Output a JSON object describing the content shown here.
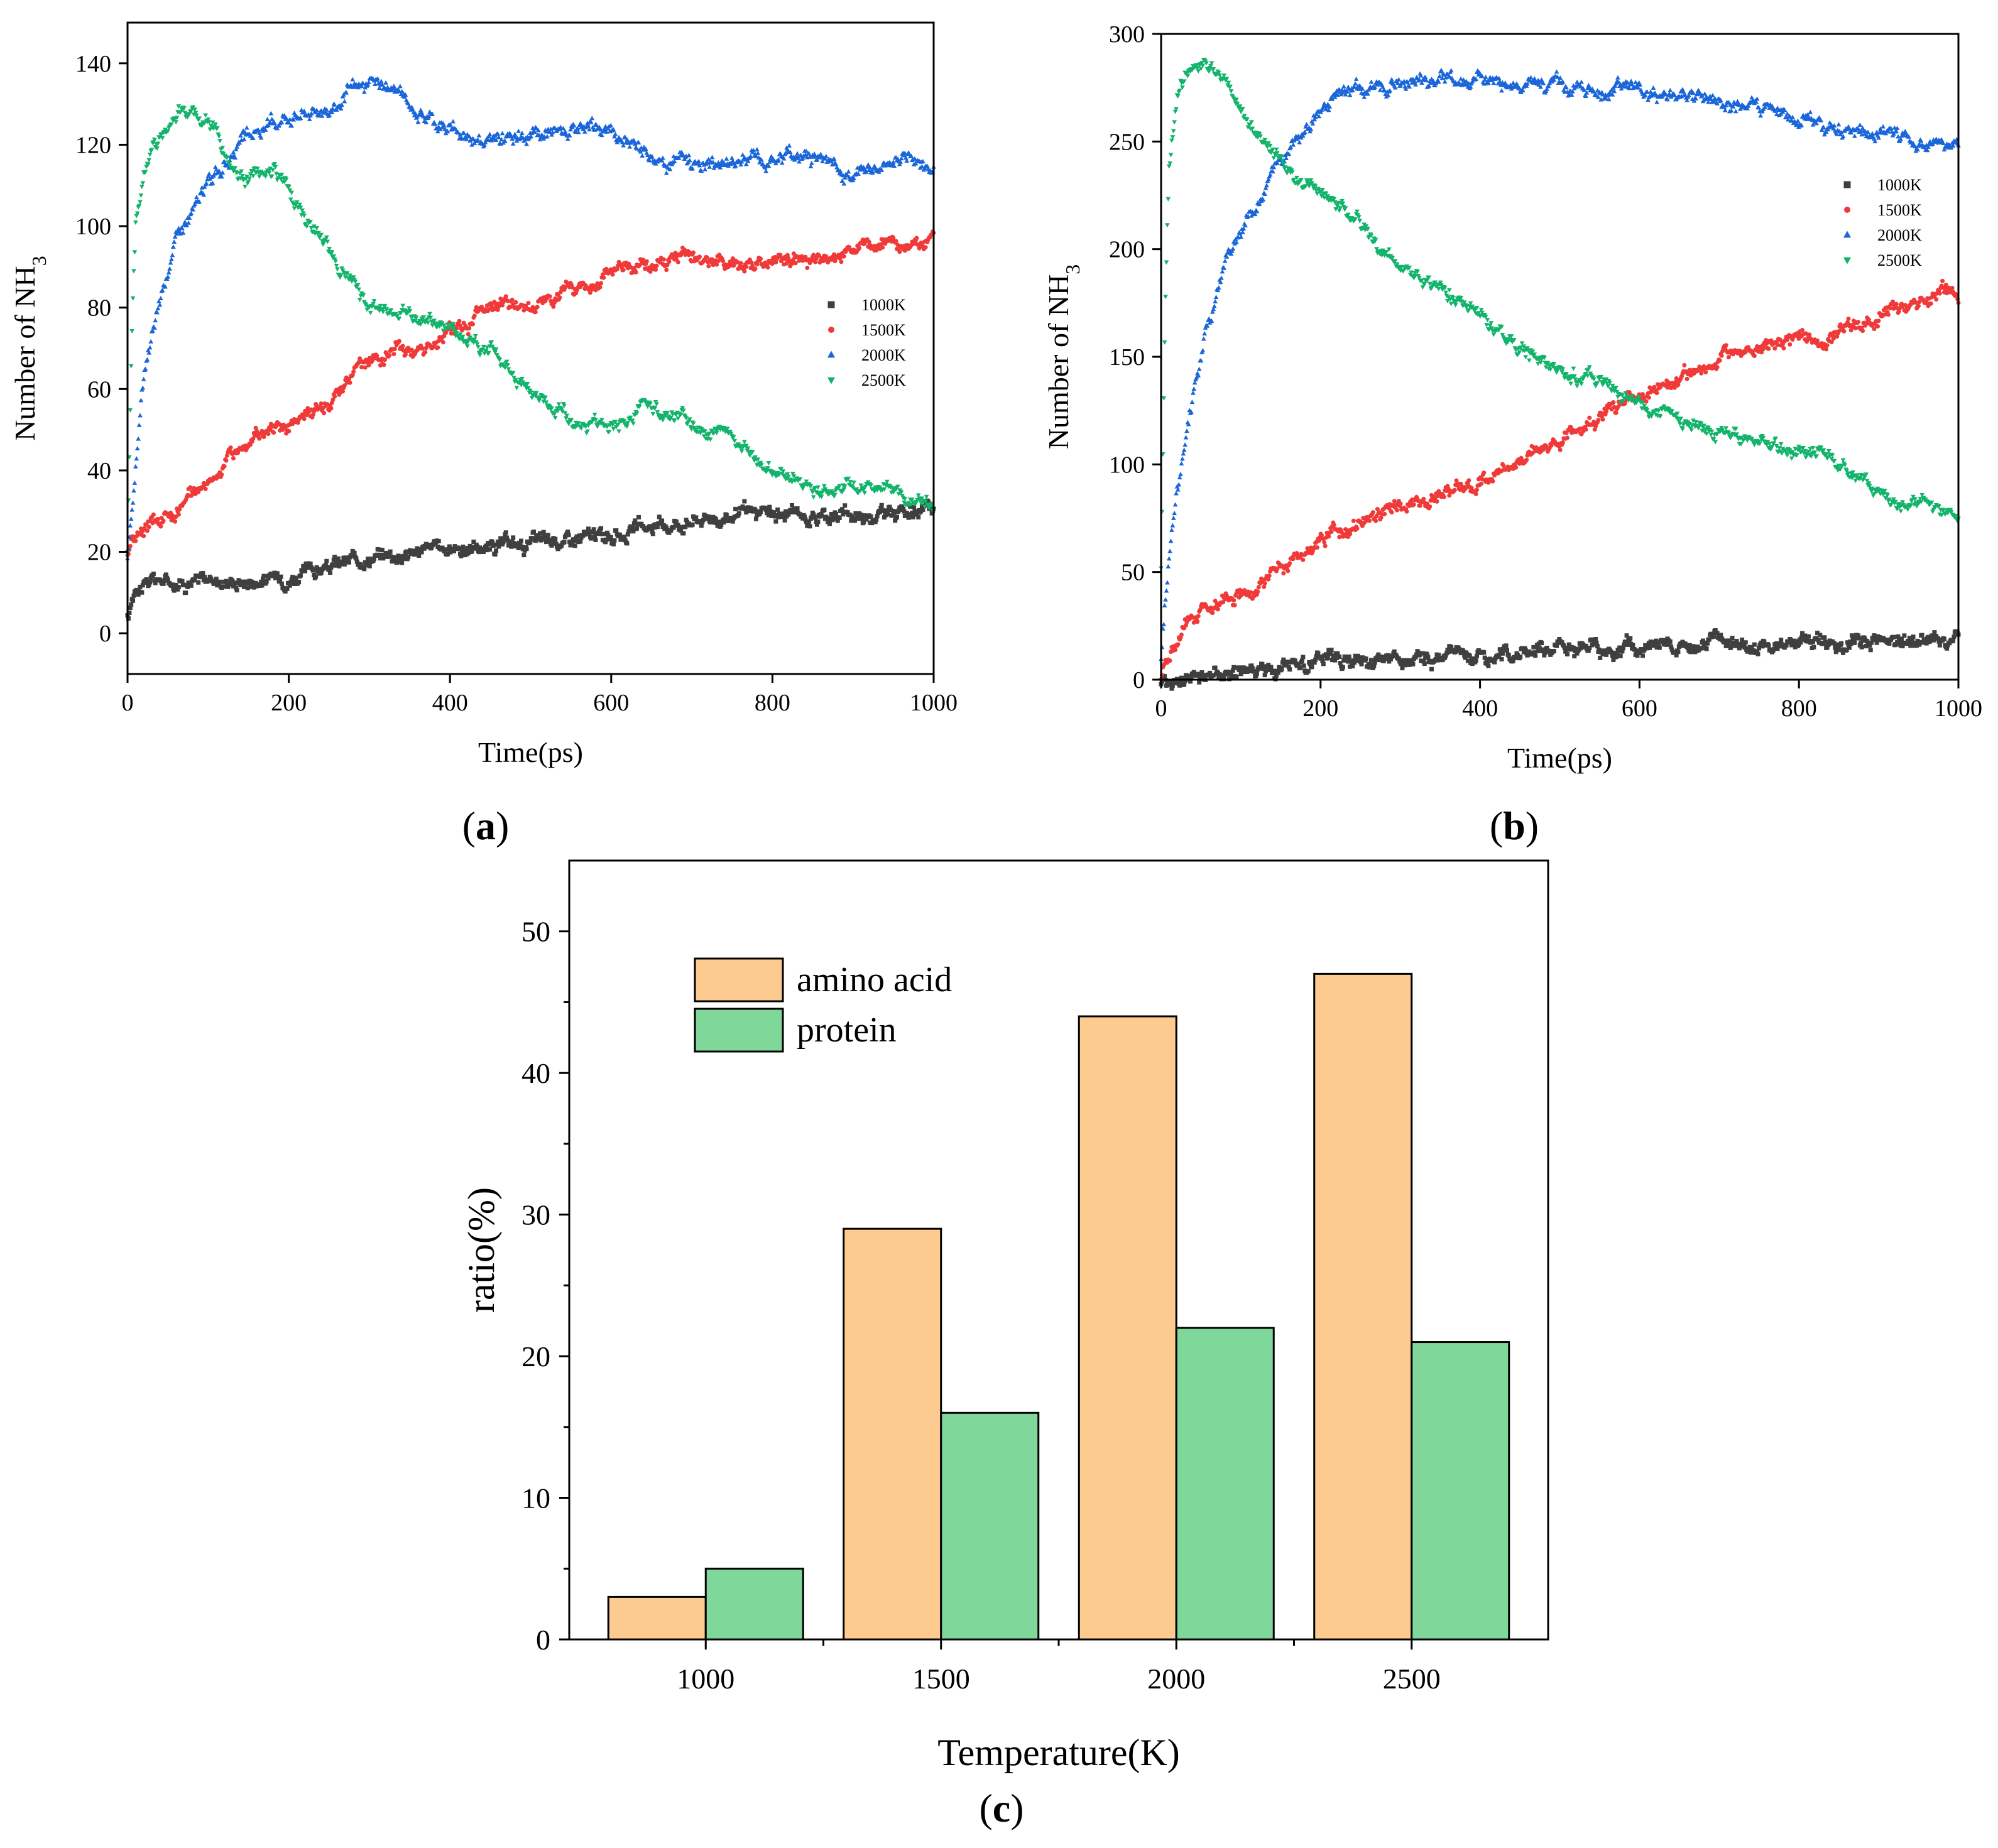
{
  "chart_data": [
    {
      "type": "scatter",
      "panel_label": "a",
      "xlabel": "Time(ps)",
      "ylabel": "Number of NH",
      "ylabel_sub": "3",
      "xlim": [
        0,
        1000
      ],
      "ylim": [
        -10,
        150
      ],
      "xticks": [
        "0",
        "200",
        "400",
        "600",
        "800",
        "1000"
      ],
      "yticks": [
        "0",
        "20",
        "40",
        "60",
        "80",
        "100",
        "120",
        "140"
      ],
      "legend_position": "right",
      "series": [
        {
          "name": "1000K",
          "color": "#3f3f3f",
          "marker": "square",
          "x": [
            0,
            10,
            30,
            60,
            100,
            150,
            200,
            250,
            300,
            350,
            400,
            450,
            500,
            550,
            600,
            650,
            700,
            750,
            800,
            850,
            900,
            950,
            1000
          ],
          "y": [
            3,
            12,
            13,
            13,
            13,
            13,
            14,
            16,
            19,
            20,
            21,
            21,
            22,
            23,
            24,
            26,
            28,
            29,
            29,
            29,
            29,
            30,
            30
          ]
        },
        {
          "name": "1500K",
          "color": "#f03a3a",
          "marker": "circle",
          "x": [
            0,
            10,
            30,
            60,
            100,
            150,
            180,
            200,
            250,
            300,
            350,
            400,
            450,
            500,
            550,
            600,
            650,
            700,
            750,
            800,
            850,
            900,
            950,
            1000
          ],
          "y": [
            20,
            24,
            27,
            30,
            38,
            47,
            51,
            50,
            58,
            67,
            70,
            74,
            79,
            81,
            83,
            88,
            90,
            92,
            91,
            90,
            92,
            93,
            96,
            96
          ]
        },
        {
          "name": "2000K",
          "color": "#1a66d9",
          "marker": "triangle-up",
          "x": [
            0,
            10,
            20,
            40,
            60,
            80,
            100,
            150,
            200,
            250,
            300,
            330,
            350,
            400,
            450,
            500,
            550,
            600,
            650,
            700,
            750,
            800,
            850,
            900,
            950,
            1000
          ],
          "y": [
            18,
            40,
            62,
            82,
            97,
            103,
            111,
            121,
            128,
            129,
            135,
            134,
            130,
            124,
            121,
            122,
            123,
            124,
            117,
            116,
            116,
            117,
            117,
            113,
            116,
            115
          ]
        },
        {
          "name": "2500K",
          "color": "#12b36a",
          "marker": "triangle-down",
          "x": [
            0,
            5,
            10,
            20,
            30,
            50,
            70,
            100,
            130,
            150,
            180,
            200,
            220,
            250,
            300,
            350,
            400,
            450,
            500,
            550,
            600,
            650,
            700,
            750,
            800,
            850,
            900,
            950,
            1000
          ],
          "y": [
            20,
            72,
            100,
            112,
            118,
            126,
            129,
            126,
            114,
            112,
            114,
            111,
            102,
            93,
            80,
            79,
            74,
            70,
            60,
            53,
            51,
            55,
            52,
            48,
            40,
            36,
            36,
            35,
            31
          ]
        }
      ]
    },
    {
      "type": "scatter",
      "panel_label": "b",
      "xlabel": "Time(ps)",
      "ylabel": "Number of NH",
      "ylabel_sub": "3",
      "xlim": [
        0,
        1000
      ],
      "ylim": [
        0,
        300
      ],
      "xticks": [
        "0",
        "200",
        "400",
        "600",
        "800",
        "1000"
      ],
      "yticks": [
        "0",
        "50",
        "100",
        "150",
        "200",
        "250",
        "300"
      ],
      "legend_position": "right",
      "series": [
        {
          "name": "1000K",
          "color": "#3f3f3f",
          "marker": "square",
          "x": [
            0,
            50,
            100,
            150,
            200,
            250,
            300,
            350,
            400,
            450,
            500,
            550,
            600,
            650,
            700,
            750,
            800,
            850,
            900,
            950,
            1000
          ],
          "y": [
            0,
            1,
            4,
            6,
            7,
            8,
            9,
            9,
            12,
            13,
            14,
            14,
            14,
            15,
            16,
            16,
            17,
            17,
            18,
            19,
            20
          ]
        },
        {
          "name": "1500K",
          "color": "#f03a3a",
          "marker": "circle",
          "x": [
            0,
            10,
            20,
            40,
            70,
            100,
            150,
            200,
            250,
            300,
            350,
            400,
            450,
            500,
            550,
            600,
            650,
            700,
            750,
            800,
            850,
            900,
            950,
            1000
          ],
          "y": [
            0,
            10,
            22,
            30,
            35,
            40,
            52,
            67,
            73,
            80,
            85,
            92,
            102,
            112,
            122,
            133,
            141,
            148,
            155,
            158,
            162,
            168,
            177,
            181
          ]
        },
        {
          "name": "2000K",
          "color": "#1a66d9",
          "marker": "triangle-up",
          "x": [
            0,
            10,
            25,
            50,
            75,
            100,
            150,
            200,
            250,
            300,
            350,
            400,
            450,
            500,
            550,
            600,
            650,
            700,
            750,
            800,
            850,
            900,
            950,
            1000
          ],
          "y": [
            10,
            60,
            100,
            150,
            190,
            208,
            242,
            264,
            276,
            277,
            280,
            278,
            279,
            276,
            274,
            273,
            270,
            268,
            264,
            261,
            256,
            254,
            250,
            246
          ]
        },
        {
          "name": "2500K",
          "color": "#12b36a",
          "marker": "triangle-down",
          "x": [
            0,
            5,
            10,
            20,
            30,
            50,
            70,
            100,
            150,
            200,
            250,
            300,
            350,
            400,
            450,
            500,
            550,
            600,
            650,
            700,
            750,
            800,
            830,
            850,
            900,
            950,
            1000
          ],
          "y": [
            50,
            170,
            240,
            270,
            282,
            287,
            281,
            267,
            240,
            225,
            210,
            193,
            180,
            170,
            155,
            143,
            140,
            130,
            120,
            115,
            110,
            105,
            108,
            100,
            88,
            80,
            74
          ]
        }
      ]
    },
    {
      "type": "bar",
      "panel_label": "c",
      "xlabel": "Temperature(K)",
      "ylabel": "ratio(%)",
      "ylim": [
        0,
        55
      ],
      "yticks": [
        "0",
        "10",
        "20",
        "30",
        "40",
        "50"
      ],
      "categories": [
        "1000",
        "1500",
        "2000",
        "2500"
      ],
      "legend_position": "top-left",
      "series": [
        {
          "name": "amino acid",
          "color": "#fdca8f",
          "values": [
            3,
            29,
            44,
            47
          ]
        },
        {
          "name": "protein",
          "color": "#7fd89a",
          "values": [
            5,
            16,
            22,
            21
          ]
        }
      ]
    }
  ]
}
